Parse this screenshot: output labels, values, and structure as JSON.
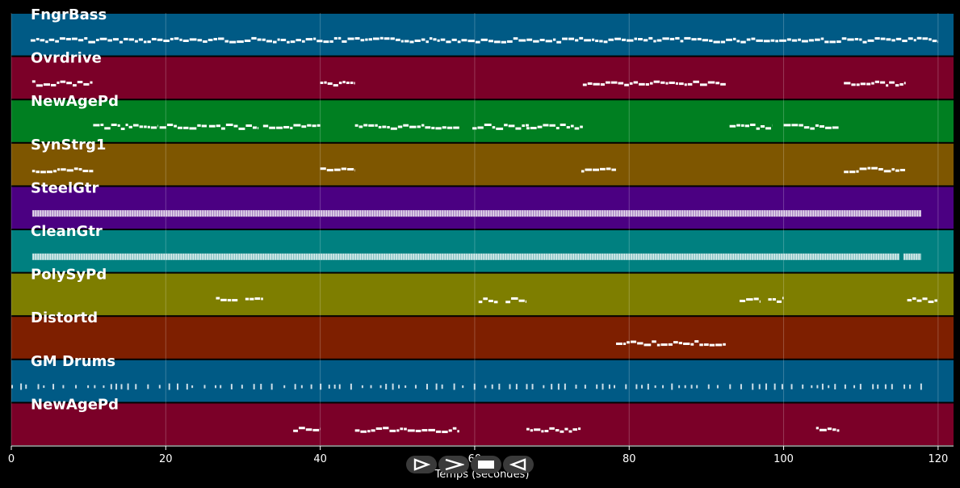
{
  "colors": {
    "background": "#000000",
    "grid": "#ffffff",
    "note": "#ffffff",
    "controls": "#3a3a3a"
  },
  "chart_data": {
    "type": "piano-roll",
    "xlabel": "Temps (secondes)",
    "xlim": [
      0,
      122
    ],
    "xticks": [
      0,
      20,
      40,
      60,
      80,
      100,
      120
    ],
    "grid": true,
    "tracks": [
      {
        "name": "FngrBass",
        "color": "#005a85",
        "notes": [
          [
            2.5,
            120
          ],
          [
            0.05
          ]
        ],
        "style": "continuous",
        "segments": [
          [
            2.5,
            120
          ]
        ]
      },
      {
        "name": "Ovrdrive",
        "color": "#7b0028",
        "style": "phrases",
        "segments": [
          [
            2.7,
            10.6
          ],
          [
            40,
            44.5
          ],
          [
            74,
            92.5
          ],
          [
            107.8,
            115.8
          ]
        ]
      },
      {
        "name": "NewAgePd",
        "color": "#007f21",
        "style": "phrases",
        "segments": [
          [
            10.6,
            19
          ],
          [
            19.2,
            25.3
          ],
          [
            25.6,
            32
          ],
          [
            32.6,
            40
          ],
          [
            44.5,
            58
          ],
          [
            59.7,
            67
          ],
          [
            66.7,
            74
          ],
          [
            93,
            98.5
          ],
          [
            100,
            107.2
          ]
        ]
      },
      {
        "name": "SynStrg1",
        "color": "#7e5600",
        "style": "phrases",
        "segments": [
          [
            2.7,
            10.6
          ],
          [
            40,
            44.5
          ],
          [
            73.8,
            78.3
          ],
          [
            107.8,
            115.8
          ]
        ]
      },
      {
        "name": "SteelGtr",
        "color": "#4b0082",
        "style": "dense",
        "segments": [
          [
            2.7,
            117.8
          ]
        ]
      },
      {
        "name": "CleanGtr",
        "color": "#008080",
        "style": "dense",
        "segments": [
          [
            2.7,
            115
          ],
          [
            115.5,
            117.8
          ]
        ]
      },
      {
        "name": "PolySyPd",
        "color": "#7e7e00",
        "style": "phrases",
        "segments": [
          [
            26.5,
            29.3
          ],
          [
            30.3,
            32.6
          ],
          [
            60.5,
            63
          ],
          [
            64,
            66.7
          ],
          [
            94.3,
            97
          ],
          [
            98,
            100
          ],
          [
            116,
            120
          ]
        ]
      },
      {
        "name": "Distortd",
        "color": "#7e1f00",
        "style": "phrases",
        "segments": [
          [
            78.3,
            92.5
          ]
        ]
      },
      {
        "name": "GM Drums",
        "color": "#005a85",
        "style": "ticks",
        "segments": [
          [
            0,
            117.8
          ]
        ]
      },
      {
        "name": "NewAgePd",
        "color": "#7b0028",
        "style": "phrases",
        "segments": [
          [
            36.5,
            40
          ],
          [
            44.5,
            58
          ],
          [
            66.7,
            73.8
          ],
          [
            104.2,
            107.2
          ]
        ]
      }
    ]
  },
  "controls": [
    {
      "name": "play",
      "icon": "play-outline-icon"
    },
    {
      "name": "fast-forward",
      "icon": "chevron-right-icon"
    },
    {
      "name": "stop",
      "icon": "stop-square-icon"
    },
    {
      "name": "rewind",
      "icon": "play-back-outline-icon"
    }
  ]
}
